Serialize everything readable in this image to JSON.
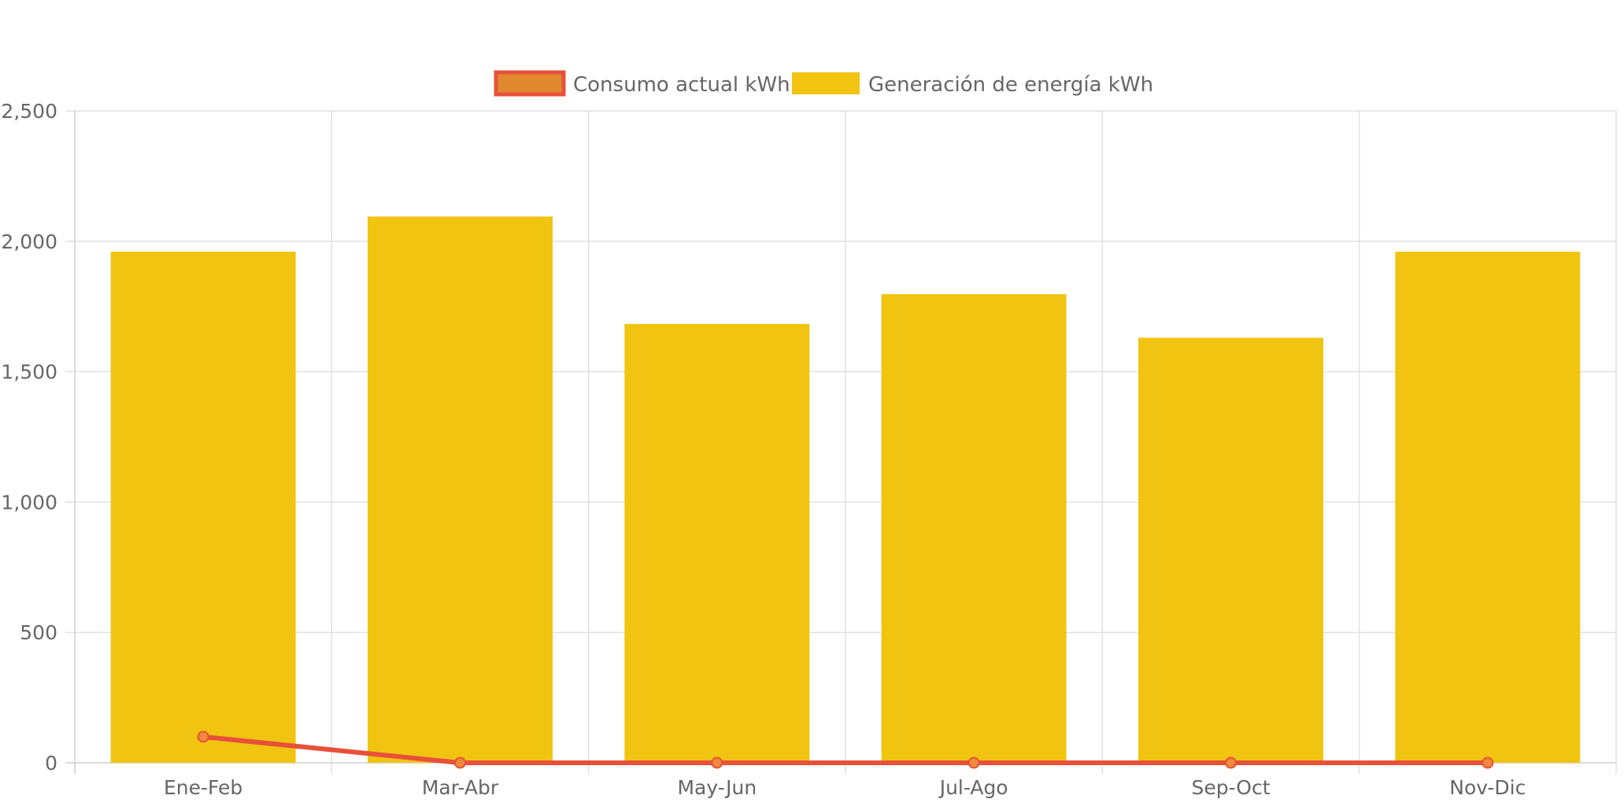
{
  "chart_data": {
    "type": "bar",
    "categories": [
      "Ene-Feb",
      "Mar-Abr",
      "May-Jun",
      "Jul-Ago",
      "Sep-Oct",
      "Nov-Dic"
    ],
    "series": [
      {
        "name": "Consumo actual kWh",
        "type": "line",
        "values": [
          100,
          0,
          0,
          0,
          0,
          0
        ],
        "color": "#e8503a",
        "point_color": "#f08a3c"
      },
      {
        "name": "Generación de energía kWh",
        "type": "bar",
        "values": [
          1960,
          2095,
          1683,
          1797,
          1630,
          1960
        ],
        "color": "#f0c410"
      }
    ],
    "ylim": [
      0,
      2500
    ],
    "yticks": [
      "0",
      "500",
      "1,000",
      "1,500",
      "2,000",
      "2,500"
    ],
    "ytick_values": [
      0,
      500,
      1000,
      1500,
      2000,
      2500
    ],
    "grid": true,
    "legend_position": "top-center",
    "title": "",
    "xlabel": "",
    "ylabel": ""
  }
}
